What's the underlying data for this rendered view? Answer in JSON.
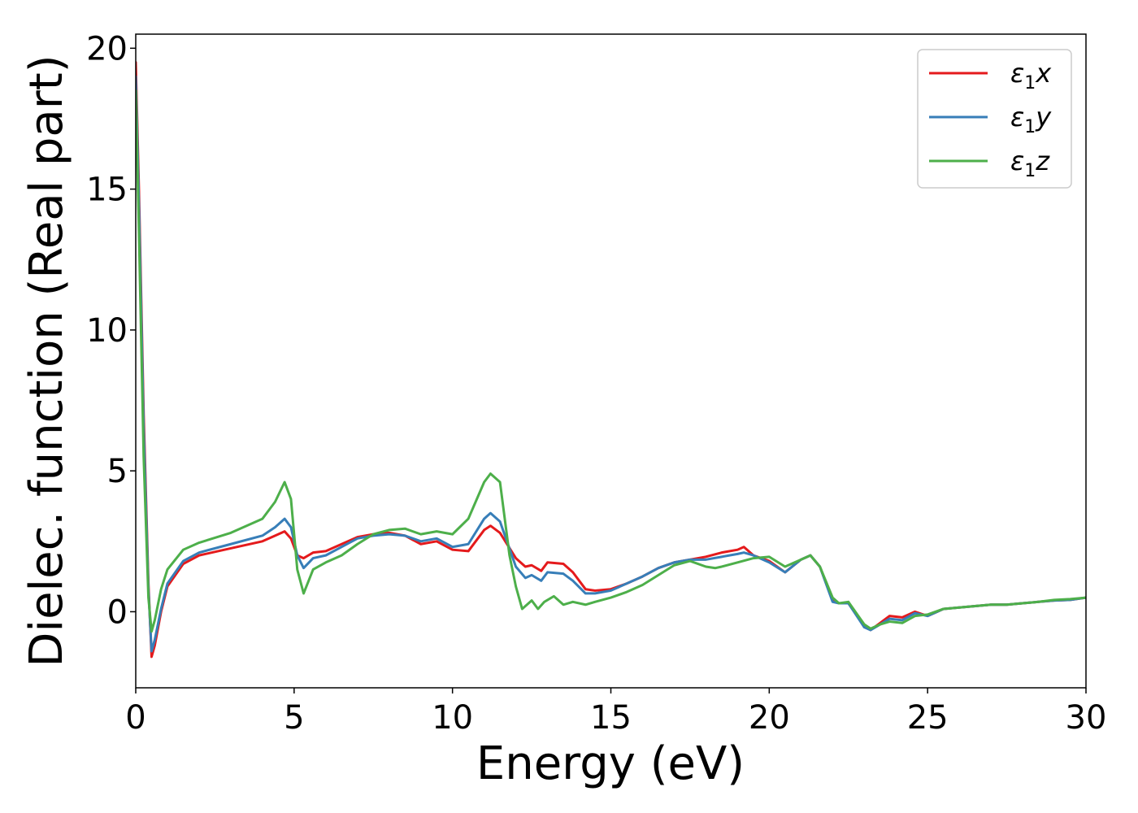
{
  "chart_data": {
    "type": "line",
    "title": "",
    "xlabel": "Energy (eV)",
    "ylabel": "Dielec. function (Real part)",
    "xlim": [
      0,
      30
    ],
    "ylim": [
      -2.7,
      20.5
    ],
    "xticks": [
      0,
      5,
      10,
      15,
      20,
      25,
      30
    ],
    "yticks": [
      0,
      5,
      10,
      15,
      20
    ],
    "grid": false,
    "legend_position": "top-right",
    "series": [
      {
        "name_base": "ε",
        "name_sub": "1",
        "name_suffix": "x",
        "color": "#e41a1c",
        "x": [
          0.0,
          0.1,
          0.25,
          0.4,
          0.5,
          0.6,
          0.8,
          1.0,
          1.5,
          2.0,
          3.0,
          4.0,
          4.4,
          4.7,
          4.9,
          5.1,
          5.3,
          5.6,
          6.0,
          6.5,
          7.0,
          7.5,
          8.0,
          8.5,
          9.0,
          9.5,
          10.0,
          10.5,
          11.0,
          11.2,
          11.5,
          12.0,
          12.3,
          12.5,
          12.8,
          13.0,
          13.5,
          13.8,
          14.2,
          14.5,
          15.0,
          15.5,
          16.0,
          16.5,
          17.0,
          17.5,
          18.0,
          18.5,
          19.0,
          19.2,
          19.5,
          20.0,
          20.5,
          21.0,
          21.3,
          21.6,
          22.0,
          22.2,
          22.5,
          23.0,
          23.2,
          23.5,
          23.8,
          24.2,
          24.6,
          25.0,
          25.5,
          26.0,
          26.5,
          27.0,
          27.5,
          28.0,
          28.5,
          29.0,
          29.5,
          30.0
        ],
        "y": [
          19.5,
          15.0,
          7.0,
          1.0,
          -1.6,
          -1.2,
          0.0,
          0.9,
          1.7,
          2.0,
          2.25,
          2.5,
          2.7,
          2.85,
          2.6,
          2.0,
          1.9,
          2.1,
          2.15,
          2.4,
          2.65,
          2.75,
          2.8,
          2.7,
          2.4,
          2.5,
          2.2,
          2.15,
          2.9,
          3.05,
          2.8,
          1.9,
          1.6,
          1.65,
          1.45,
          1.75,
          1.7,
          1.4,
          0.8,
          0.75,
          0.8,
          1.0,
          1.25,
          1.55,
          1.75,
          1.85,
          1.95,
          2.1,
          2.2,
          2.3,
          2.0,
          1.8,
          1.4,
          1.85,
          2.0,
          1.6,
          0.4,
          0.3,
          0.3,
          -0.5,
          -0.65,
          -0.4,
          -0.15,
          -0.2,
          0.0,
          -0.15,
          0.1,
          0.15,
          0.2,
          0.25,
          0.25,
          0.3,
          0.35,
          0.4,
          0.42,
          0.5
        ]
      },
      {
        "name_base": "ε",
        "name_sub": "1",
        "name_suffix": "y",
        "color": "#377eb8",
        "x": [
          0.0,
          0.1,
          0.25,
          0.4,
          0.5,
          0.6,
          0.8,
          1.0,
          1.5,
          2.0,
          3.0,
          4.0,
          4.4,
          4.7,
          4.9,
          5.1,
          5.3,
          5.6,
          6.0,
          6.5,
          7.0,
          7.5,
          8.0,
          8.5,
          9.0,
          9.5,
          10.0,
          10.5,
          11.0,
          11.2,
          11.5,
          12.0,
          12.3,
          12.5,
          12.8,
          13.0,
          13.5,
          13.8,
          14.2,
          14.5,
          15.0,
          15.5,
          16.0,
          16.5,
          17.0,
          17.5,
          18.0,
          18.5,
          19.0,
          19.2,
          19.5,
          20.0,
          20.5,
          21.0,
          21.3,
          21.6,
          22.0,
          22.2,
          22.5,
          23.0,
          23.2,
          23.5,
          23.8,
          24.2,
          24.6,
          25.0,
          25.5,
          26.0,
          26.5,
          27.0,
          27.5,
          28.0,
          28.5,
          29.0,
          29.5,
          30.0
        ],
        "y": [
          19.0,
          14.5,
          6.5,
          0.8,
          -1.4,
          -1.0,
          0.1,
          1.0,
          1.8,
          2.1,
          2.4,
          2.7,
          3.0,
          3.3,
          3.0,
          2.0,
          1.55,
          1.9,
          2.0,
          2.3,
          2.6,
          2.7,
          2.75,
          2.7,
          2.5,
          2.6,
          2.3,
          2.4,
          3.3,
          3.5,
          3.2,
          1.6,
          1.2,
          1.3,
          1.1,
          1.4,
          1.35,
          1.1,
          0.65,
          0.65,
          0.75,
          1.0,
          1.25,
          1.55,
          1.75,
          1.85,
          1.85,
          1.95,
          2.05,
          2.1,
          2.0,
          1.75,
          1.4,
          1.85,
          2.0,
          1.6,
          0.35,
          0.3,
          0.3,
          -0.55,
          -0.65,
          -0.45,
          -0.25,
          -0.3,
          -0.05,
          -0.15,
          0.1,
          0.15,
          0.2,
          0.25,
          0.25,
          0.3,
          0.35,
          0.4,
          0.42,
          0.5
        ]
      },
      {
        "name_base": "ε",
        "name_sub": "1",
        "name_suffix": "z",
        "color": "#4daf4a",
        "x": [
          0.0,
          0.1,
          0.25,
          0.4,
          0.5,
          0.6,
          0.8,
          1.0,
          1.5,
          2.0,
          3.0,
          4.0,
          4.4,
          4.7,
          4.9,
          5.1,
          5.3,
          5.6,
          6.0,
          6.5,
          7.0,
          7.5,
          8.0,
          8.5,
          9.0,
          9.5,
          10.0,
          10.5,
          11.0,
          11.2,
          11.5,
          11.8,
          12.0,
          12.2,
          12.5,
          12.7,
          12.9,
          13.2,
          13.5,
          13.8,
          14.2,
          14.5,
          15.0,
          15.5,
          16.0,
          16.5,
          17.0,
          17.5,
          18.0,
          18.3,
          18.5,
          19.0,
          19.5,
          20.0,
          20.5,
          21.0,
          21.3,
          21.6,
          22.0,
          22.2,
          22.5,
          23.0,
          23.2,
          23.5,
          23.8,
          24.2,
          24.6,
          25.0,
          25.5,
          26.0,
          26.5,
          27.0,
          27.5,
          28.0,
          28.5,
          29.0,
          29.5,
          30.0
        ],
        "y": [
          18.5,
          13.5,
          5.5,
          0.5,
          -0.7,
          -0.3,
          0.8,
          1.5,
          2.2,
          2.45,
          2.8,
          3.3,
          3.9,
          4.6,
          4.0,
          1.5,
          0.65,
          1.5,
          1.75,
          2.0,
          2.4,
          2.75,
          2.9,
          2.95,
          2.75,
          2.85,
          2.75,
          3.3,
          4.6,
          4.9,
          4.6,
          2.0,
          0.9,
          0.1,
          0.4,
          0.1,
          0.35,
          0.55,
          0.25,
          0.35,
          0.25,
          0.35,
          0.5,
          0.7,
          0.95,
          1.3,
          1.65,
          1.8,
          1.6,
          1.55,
          1.6,
          1.75,
          1.9,
          1.95,
          1.6,
          1.85,
          2.0,
          1.6,
          0.5,
          0.3,
          0.35,
          -0.45,
          -0.6,
          -0.45,
          -0.35,
          -0.4,
          -0.15,
          -0.1,
          0.1,
          0.15,
          0.2,
          0.25,
          0.25,
          0.3,
          0.35,
          0.42,
          0.45,
          0.5
        ]
      }
    ]
  }
}
